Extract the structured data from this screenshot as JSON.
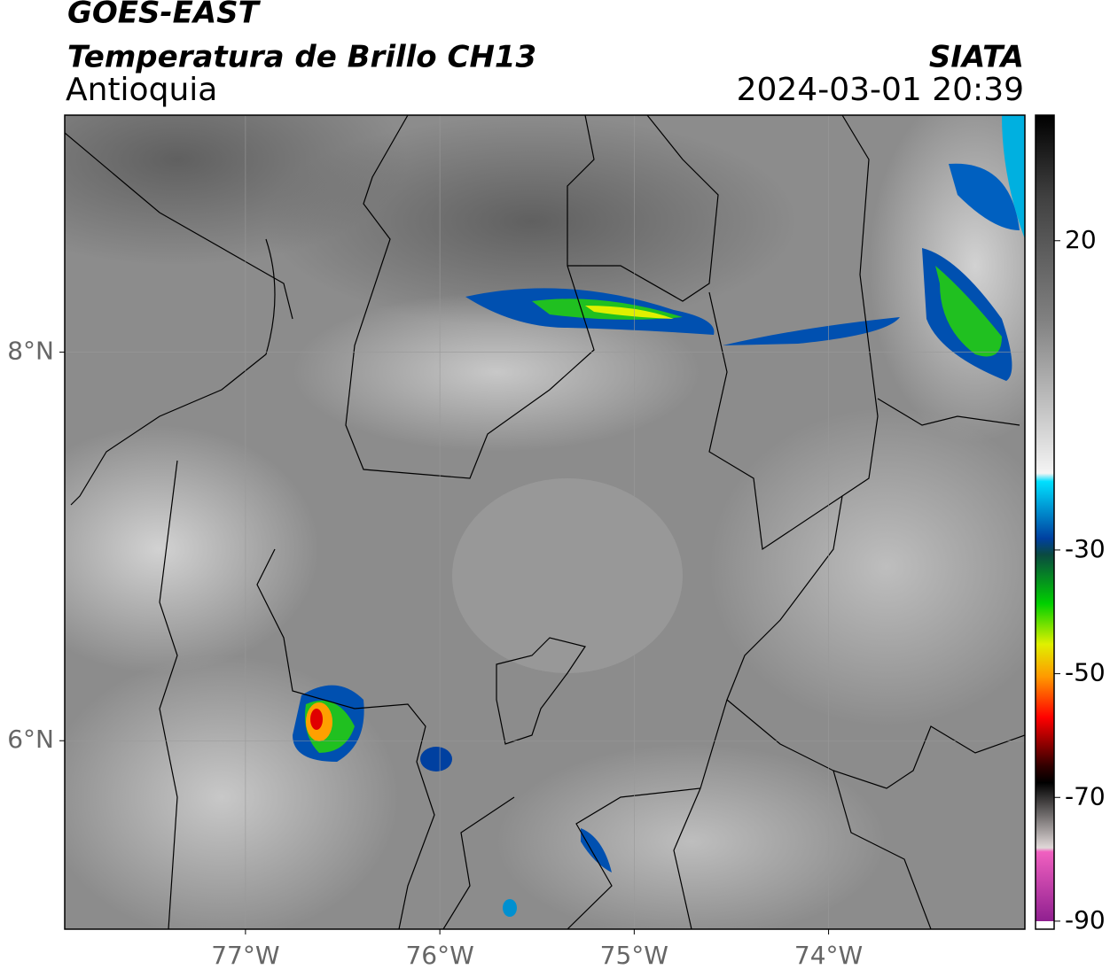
{
  "header": {
    "title": "GOES-EAST",
    "subtitle": "Temperatura de Brillo CH13",
    "region": "Antioquia",
    "source": "SIATA",
    "timestamp": "2024-03-01 20:39"
  },
  "map": {
    "xlim": [
      -77.93,
      -72.99
    ],
    "ylim": [
      5.03,
      9.22
    ],
    "xticks": [
      {
        "value": -77,
        "label": "77°W"
      },
      {
        "value": -76,
        "label": "76°W"
      },
      {
        "value": -75,
        "label": "75°W"
      },
      {
        "value": -74,
        "label": "74°W"
      }
    ],
    "yticks": [
      {
        "value": 8,
        "label": "8°N"
      },
      {
        "value": 6,
        "label": "6°N"
      }
    ]
  },
  "colorbar": {
    "range": [
      -91.3,
      40.3
    ],
    "ticks": [
      20,
      -30,
      -50,
      -70,
      -90
    ]
  }
}
